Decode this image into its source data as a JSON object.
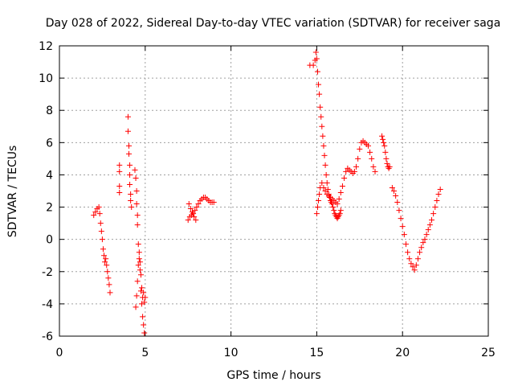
{
  "chart_data": {
    "type": "scatter",
    "title": "Day 028 of 2022, Sidereal Day-to-day VTEC variation (SDTVAR) for receiver saga",
    "xlabel": "GPS time / hours",
    "ylabel": "SDTVAR / TECUs",
    "xlim": [
      0,
      25
    ],
    "ylim": [
      -6,
      12
    ],
    "xticks": [
      0,
      5,
      10,
      15,
      20,
      25
    ],
    "yticks": [
      -6,
      -4,
      -2,
      0,
      2,
      4,
      6,
      8,
      10,
      12
    ],
    "xtick_labels": [
      "0",
      "5",
      "10",
      "15",
      "20",
      "25"
    ],
    "ytick_labels": [
      "-6",
      "-4",
      "-2",
      "0",
      "2",
      "4",
      "6",
      "8",
      "10",
      "12"
    ],
    "grid": true,
    "marker": "+",
    "color": "#ff0000",
    "series": [
      {
        "name": "SDTVAR",
        "x": [
          2.0,
          2.1,
          2.2,
          2.3,
          2.35,
          2.4,
          2.45,
          2.5,
          2.55,
          2.6,
          2.65,
          2.7,
          2.75,
          2.8,
          2.85,
          2.9,
          2.95,
          3.5,
          3.5,
          3.5,
          3.5,
          4.0,
          4.0,
          4.05,
          4.05,
          4.1,
          4.1,
          4.1,
          4.15,
          4.15,
          4.2,
          4.4,
          4.45,
          4.5,
          4.5,
          4.55,
          4.55,
          4.6,
          4.65,
          4.7,
          4.75,
          4.8,
          4.85,
          4.9,
          4.95,
          4.45,
          4.5,
          4.55,
          4.6,
          4.65,
          4.7,
          4.75,
          4.8,
          4.85,
          4.9,
          4.95,
          5.0,
          7.5,
          7.6,
          7.7,
          7.8,
          7.9,
          8.0,
          8.1,
          8.2,
          8.3,
          8.4,
          8.5,
          8.6,
          8.7,
          8.8,
          8.9,
          9.0,
          7.55,
          7.65,
          7.75,
          7.85,
          7.95,
          14.6,
          14.8,
          14.9,
          14.95,
          15.0,
          15.05,
          15.1,
          15.15,
          15.2,
          15.25,
          15.3,
          15.35,
          15.4,
          15.45,
          15.5,
          15.55,
          15.6,
          15.65,
          15.7,
          15.75,
          15.8,
          15.85,
          15.9,
          15.95,
          16.0,
          16.05,
          16.1,
          16.15,
          16.2,
          16.25,
          16.3,
          16.35,
          16.4,
          15.0,
          15.05,
          15.1,
          15.15,
          15.2,
          15.3,
          15.4,
          15.5,
          15.6,
          15.7,
          15.8,
          15.9,
          16.0,
          16.1,
          16.2,
          16.3,
          16.4,
          16.5,
          16.6,
          16.7,
          16.8,
          16.9,
          17.0,
          17.1,
          17.2,
          17.3,
          17.4,
          17.5,
          17.6,
          17.7,
          17.8,
          17.9,
          18.0,
          18.1,
          18.2,
          18.3,
          18.4,
          18.8,
          18.85,
          18.9,
          18.95,
          19.0,
          19.05,
          19.1,
          19.15,
          19.2,
          19.25,
          19.4,
          19.5,
          19.6,
          19.7,
          19.8,
          19.9,
          20.0,
          20.1,
          20.2,
          20.3,
          20.4,
          20.5,
          20.6,
          20.7,
          20.8,
          20.9,
          21.0,
          21.1,
          21.2,
          21.3,
          21.4,
          21.5,
          21.6,
          21.7,
          21.8,
          21.9,
          22.0,
          22.1,
          22.2
        ],
        "y": [
          1.5,
          1.7,
          1.9,
          2.0,
          1.6,
          1.0,
          0.5,
          0.0,
          -0.6,
          -1.0,
          -1.4,
          -1.2,
          -1.6,
          -2.0,
          -2.4,
          -2.8,
          -3.3,
          4.6,
          4.2,
          3.3,
          2.9,
          7.6,
          6.7,
          5.8,
          5.3,
          4.6,
          4.0,
          3.4,
          2.8,
          2.4,
          2.0,
          4.3,
          3.8,
          3.0,
          2.2,
          1.5,
          0.9,
          -0.3,
          -1.2,
          -1.9,
          -3.2,
          -4.0,
          -4.8,
          -5.3,
          -5.8,
          -4.2,
          -3.5,
          -2.6,
          -1.6,
          -0.8,
          -1.4,
          -2.2,
          -3.0,
          -3.6,
          -3.3,
          -3.9,
          -3.6,
          1.2,
          1.4,
          1.5,
          1.6,
          1.8,
          2.0,
          2.2,
          2.4,
          2.5,
          2.6,
          2.6,
          2.5,
          2.4,
          2.3,
          2.3,
          2.3,
          2.2,
          1.9,
          1.7,
          1.4,
          1.2,
          10.8,
          10.8,
          11.1,
          11.6,
          11.2,
          10.4,
          9.6,
          9.0,
          8.2,
          7.6,
          7.0,
          6.4,
          5.8,
          5.2,
          4.6,
          4.0,
          3.5,
          3.1,
          2.8,
          2.6,
          2.4,
          2.3,
          2.2,
          2.0,
          1.8,
          1.6,
          1.5,
          1.4,
          1.3,
          1.4,
          1.5,
          1.6,
          1.8,
          1.6,
          2.0,
          2.4,
          2.8,
          3.2,
          3.5,
          3.2,
          3.0,
          2.8,
          2.7,
          2.6,
          2.5,
          2.4,
          2.3,
          2.2,
          2.5,
          2.9,
          3.3,
          3.8,
          4.2,
          4.4,
          4.3,
          4.2,
          4.1,
          4.2,
          4.5,
          5.0,
          5.6,
          6.0,
          6.1,
          6.0,
          5.9,
          5.8,
          5.4,
          5.0,
          4.5,
          4.2,
          6.4,
          6.2,
          6.0,
          5.8,
          5.4,
          5.0,
          4.7,
          4.5,
          4.4,
          4.5,
          3.2,
          3.0,
          2.7,
          2.3,
          1.8,
          1.3,
          0.8,
          0.3,
          -0.3,
          -0.8,
          -1.2,
          -1.5,
          -1.7,
          -1.9,
          -1.6,
          -1.2,
          -0.8,
          -0.5,
          -0.2,
          0.0,
          0.3,
          0.6,
          0.9,
          1.2,
          1.6,
          2.0,
          2.4,
          2.8,
          3.1
        ]
      }
    ]
  }
}
